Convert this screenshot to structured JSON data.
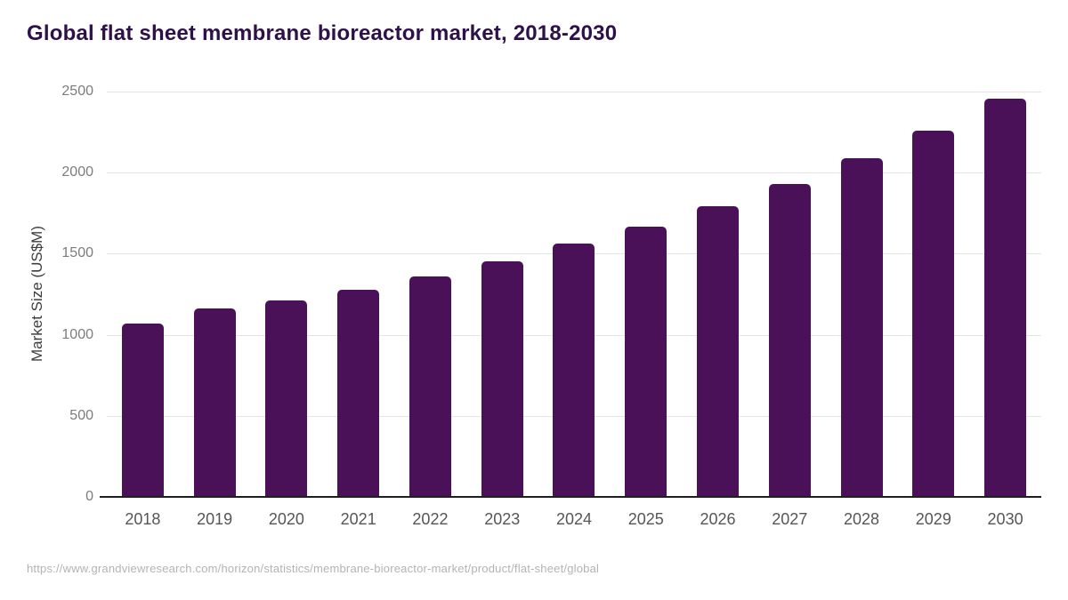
{
  "page": {
    "title": "Global flat sheet membrane bioreactor market, 2018-2030",
    "source_url": "https://www.grandviewresearch.com/horizon/statistics/membrane-bioreactor-market/product/flat-sheet/global"
  },
  "chart_data": {
    "type": "bar",
    "title": "Global flat sheet membrane bioreactor market, 2018-2030",
    "categories": [
      "2018",
      "2019",
      "2020",
      "2021",
      "2022",
      "2023",
      "2024",
      "2025",
      "2026",
      "2027",
      "2028",
      "2029",
      "2030"
    ],
    "values": [
      1070,
      1165,
      1210,
      1275,
      1360,
      1455,
      1560,
      1665,
      1795,
      1930,
      2090,
      2260,
      2455
    ],
    "xlabel": "",
    "ylabel": "Market Size (US$M)",
    "ylim": [
      0,
      2500
    ],
    "y_ticks": [
      0,
      500,
      1000,
      1500,
      2000,
      2500
    ],
    "grid": "horizontal",
    "legend": "none",
    "colors": {
      "bar": "#4a1159",
      "title": "#2e1148",
      "axis_line": "#1f1f1f",
      "gridline": "#e4e4e4",
      "tick_text": "#7c7c7c",
      "source_text": "#b3b3b3"
    }
  }
}
